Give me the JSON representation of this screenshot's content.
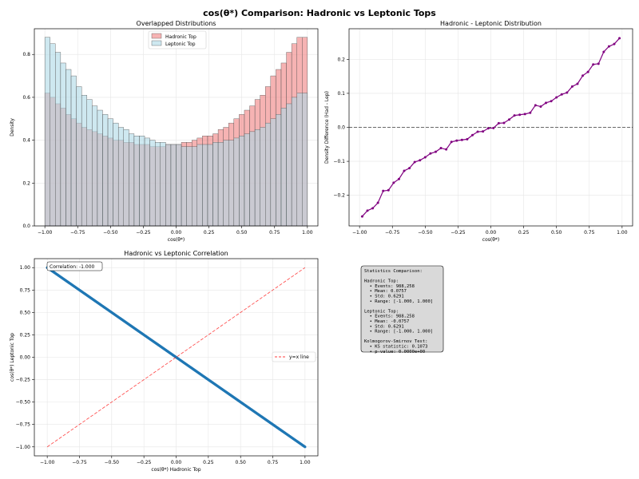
{
  "suptitle": "cos(θ*) Comparison: Hadronic vs Leptonic Tops",
  "colors": {
    "hadronic": "#f08080",
    "leptonic": "#add8e6",
    "diff": "#800080",
    "scatter": "#1f77b4",
    "ref_line": "#ff0000"
  },
  "chart_data": [
    {
      "type": "bar",
      "title": "Overlapped Distributions",
      "xlabel": "cos(θ*)",
      "ylabel": "Density",
      "xlim": [
        -1.08,
        1.08
      ],
      "ylim": [
        0,
        0.92
      ],
      "xticks": [
        -1.0,
        -0.75,
        -0.5,
        -0.25,
        0.0,
        0.25,
        0.5,
        0.75,
        1.0
      ],
      "xtick_labels": [
        "−1.00",
        "−0.75",
        "−0.50",
        "−0.25",
        "0.00",
        "0.25",
        "0.50",
        "0.75",
        "1.00"
      ],
      "yticks": [
        0,
        0.2,
        0.4,
        0.6,
        0.8
      ],
      "ytick_labels": [
        "0.0",
        "0.2",
        "0.4",
        "0.6",
        "0.8"
      ],
      "legend_position": "top-center",
      "grid": true,
      "bin_edges_range": [
        -1.0,
        1.0
      ],
      "bins": 50,
      "series": [
        {
          "name": "Hadronic Top",
          "values": [
            0.62,
            0.6,
            0.57,
            0.55,
            0.52,
            0.5,
            0.48,
            0.46,
            0.45,
            0.44,
            0.43,
            0.42,
            0.41,
            0.4,
            0.4,
            0.39,
            0.39,
            0.38,
            0.38,
            0.38,
            0.37,
            0.37,
            0.37,
            0.38,
            0.38,
            0.38,
            0.39,
            0.39,
            0.4,
            0.41,
            0.42,
            0.42,
            0.43,
            0.45,
            0.46,
            0.48,
            0.5,
            0.52,
            0.54,
            0.56,
            0.59,
            0.61,
            0.65,
            0.7,
            0.73,
            0.76,
            0.81,
            0.85,
            0.88,
            0.88
          ]
        },
        {
          "name": "Leptonic Top",
          "values": [
            0.88,
            0.85,
            0.81,
            0.76,
            0.73,
            0.7,
            0.65,
            0.61,
            0.59,
            0.56,
            0.54,
            0.52,
            0.5,
            0.48,
            0.46,
            0.45,
            0.43,
            0.42,
            0.42,
            0.41,
            0.4,
            0.39,
            0.39,
            0.38,
            0.38,
            0.38,
            0.37,
            0.37,
            0.37,
            0.38,
            0.38,
            0.38,
            0.39,
            0.39,
            0.4,
            0.4,
            0.41,
            0.42,
            0.43,
            0.44,
            0.45,
            0.46,
            0.48,
            0.5,
            0.52,
            0.55,
            0.57,
            0.6,
            0.62,
            0.62
          ]
        }
      ]
    },
    {
      "type": "line",
      "title": "Hadronic - Leptonic Distribution",
      "xlabel": "cos(θ*)",
      "ylabel": "Density Difference (Had - Lep)",
      "xlim": [
        -1.08,
        1.08
      ],
      "ylim": [
        -0.29,
        0.29
      ],
      "xticks": [
        -1.0,
        -0.75,
        -0.5,
        -0.25,
        0.0,
        0.25,
        0.5,
        0.75,
        1.0
      ],
      "xtick_labels": [
        "−1.00",
        "−0.75",
        "−0.50",
        "−0.25",
        "0.00",
        "0.25",
        "0.50",
        "0.75",
        "1.00"
      ],
      "yticks": [
        -0.2,
        -0.1,
        0.0,
        0.1,
        0.2
      ],
      "ytick_labels": [
        "−0.2",
        "−0.1",
        "0.0",
        "0.1",
        "0.2"
      ],
      "grid": true,
      "reference_y": 0.0,
      "x": [
        -0.98,
        -0.94,
        -0.9,
        -0.86,
        -0.82,
        -0.78,
        -0.74,
        -0.7,
        -0.66,
        -0.62,
        -0.58,
        -0.54,
        -0.5,
        -0.46,
        -0.42,
        -0.38,
        -0.34,
        -0.3,
        -0.26,
        -0.22,
        -0.18,
        -0.14,
        -0.1,
        -0.06,
        -0.02,
        0.02,
        0.06,
        0.1,
        0.14,
        0.18,
        0.22,
        0.26,
        0.3,
        0.34,
        0.38,
        0.42,
        0.46,
        0.5,
        0.54,
        0.58,
        0.62,
        0.66,
        0.7,
        0.74,
        0.78,
        0.82,
        0.86,
        0.9,
        0.94,
        0.98
      ],
      "y": [
        -0.262,
        -0.245,
        -0.238,
        -0.222,
        -0.187,
        -0.185,
        -0.163,
        -0.152,
        -0.128,
        -0.12,
        -0.102,
        -0.097,
        -0.088,
        -0.077,
        -0.072,
        -0.061,
        -0.065,
        -0.043,
        -0.039,
        -0.037,
        -0.035,
        -0.023,
        -0.013,
        -0.012,
        -0.003,
        -0.002,
        0.012,
        0.013,
        0.023,
        0.035,
        0.037,
        0.039,
        0.043,
        0.065,
        0.061,
        0.072,
        0.077,
        0.088,
        0.097,
        0.102,
        0.12,
        0.128,
        0.152,
        0.163,
        0.185,
        0.187,
        0.222,
        0.238,
        0.245,
        0.262
      ]
    },
    {
      "type": "scatter",
      "title": "Hadronic vs Leptonic Correlation",
      "xlabel": "cos(θ*) Hadronic Top",
      "ylabel": "cos(θ*) Leptonic Top",
      "xlim": [
        -1.1,
        1.1
      ],
      "ylim": [
        -1.1,
        1.1
      ],
      "xticks": [
        -1.0,
        -0.75,
        -0.5,
        -0.25,
        0.0,
        0.25,
        0.5,
        0.75,
        1.0
      ],
      "xtick_labels": [
        "−1.00",
        "−0.75",
        "−0.50",
        "−0.25",
        "0.00",
        "0.25",
        "0.50",
        "0.75",
        "1.00"
      ],
      "yticks": [
        -1.0,
        -0.75,
        -0.5,
        -0.25,
        0.0,
        0.25,
        0.5,
        0.75,
        1.0
      ],
      "ytick_labels": [
        "−1.00",
        "−0.75",
        "−0.50",
        "−0.25",
        "0.00",
        "0.25",
        "0.50",
        "0.75",
        "1.00"
      ],
      "grid": true,
      "correlation_label": "Correlation: -1.000",
      "legend_position": "center-right",
      "reference_line": {
        "name": "y=x line",
        "x": [
          -1.0,
          1.0
        ],
        "y": [
          -1.0,
          1.0
        ]
      },
      "series": [
        {
          "x_range": [
            -1.0,
            1.0
          ],
          "relation": "y = -x"
        }
      ]
    }
  ],
  "stats": {
    "lines": [
      "Statistics Comparison:",
      "",
      "Hadronic Top:",
      "  • Events: 988,258",
      "  • Mean: 0.0757",
      "  • Std: 0.6291",
      "  • Range: [-1.000, 1.000]",
      "",
      "Leptonic Top:",
      "  • Events: 988,258",
      "  • Mean: -0.0757",
      "  • Std: 0.6291",
      "  • Range: [-1.000, 1.000]",
      "",
      "Kolmogorov-Smirnov Test:",
      "  • KS statistic: 0.1073",
      "  • p-value: 0.0000e+00"
    ]
  }
}
